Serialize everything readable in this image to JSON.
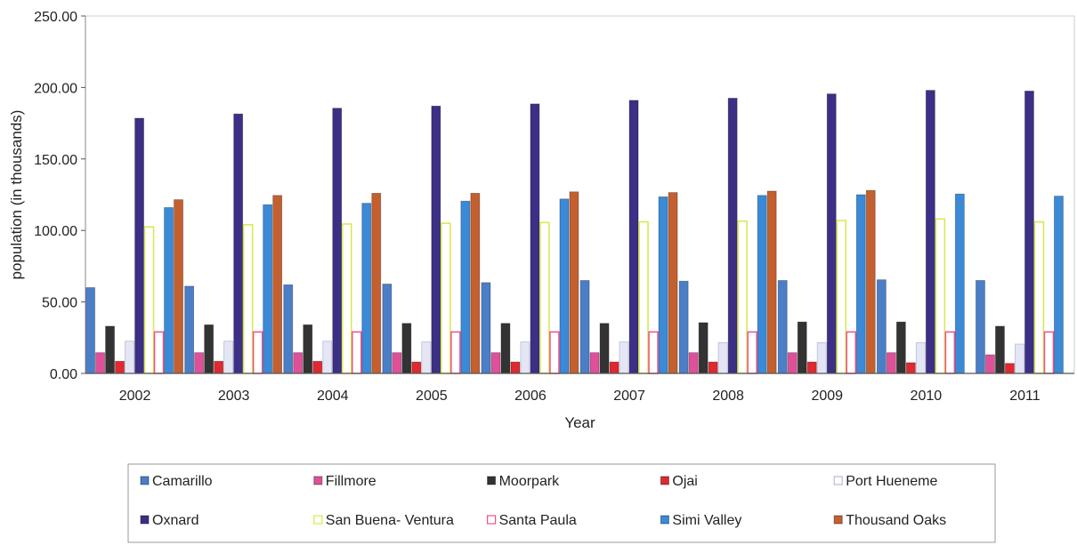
{
  "chart_data": {
    "type": "bar",
    "title": "",
    "xlabel": "Year",
    "ylabel": "population (in thousands)",
    "ylim": [
      0,
      250
    ],
    "yticks": [
      "0.00",
      "50.00",
      "100.00",
      "150.00",
      "200.00",
      "250.00"
    ],
    "grid": false,
    "legend_position": "bottom",
    "categories": [
      "2002",
      "2003",
      "2004",
      "2005",
      "2006",
      "2007",
      "2008",
      "2009",
      "2010",
      "2011"
    ],
    "series": [
      {
        "name": "Camarillo",
        "color": "#4a7fc8",
        "values": [
          60,
          61,
          62,
          62.5,
          63.5,
          65,
          64.5,
          65,
          65.5,
          65
        ]
      },
      {
        "name": "Fillmore",
        "color": "#e0509a",
        "values": [
          14.5,
          14.5,
          14.5,
          14.5,
          14.5,
          14.5,
          14.5,
          14.5,
          14.5,
          13
        ]
      },
      {
        "name": "Moorpark",
        "color": "#333333",
        "values": [
          33,
          34,
          34,
          35,
          35,
          35,
          35.5,
          36,
          36,
          33
        ]
      },
      {
        "name": "Ojai",
        "color": "#e02830",
        "values": [
          8.5,
          8.5,
          8.5,
          8,
          8,
          8,
          8,
          8,
          7.5,
          7
        ]
      },
      {
        "name": "Port Hueneme",
        "color": "#e4e6f4",
        "values": [
          22.5,
          22.5,
          22.5,
          22,
          22,
          22,
          21.5,
          21.5,
          21.5,
          20.5
        ]
      },
      {
        "name": "Oxnard",
        "color": "#3c2f86",
        "values": [
          178.5,
          181.5,
          185.5,
          187,
          188.5,
          191,
          192.5,
          195.5,
          198,
          197.5
        ]
      },
      {
        "name": "San Buena- Ventura",
        "color": "#d8e84a",
        "values": [
          102.5,
          104,
          104.5,
          105,
          105.5,
          106,
          106.5,
          107,
          108,
          106
        ]
      },
      {
        "name": "Santa Paula",
        "color": "#f0508a",
        "values": [
          29,
          29,
          29,
          29,
          29,
          29,
          29,
          29,
          29,
          29
        ]
      },
      {
        "name": "Simi Valley",
        "color": "#3a8ad8",
        "values": [
          116,
          118,
          119,
          120.5,
          122,
          123.5,
          124.5,
          125,
          125.5,
          124
        ]
      },
      {
        "name": "Thousand Oaks",
        "color": "#c46030",
        "values": [
          121.5,
          124.5,
          126,
          126,
          127,
          126.5,
          127.5,
          128,
          null,
          null
        ]
      }
    ]
  }
}
